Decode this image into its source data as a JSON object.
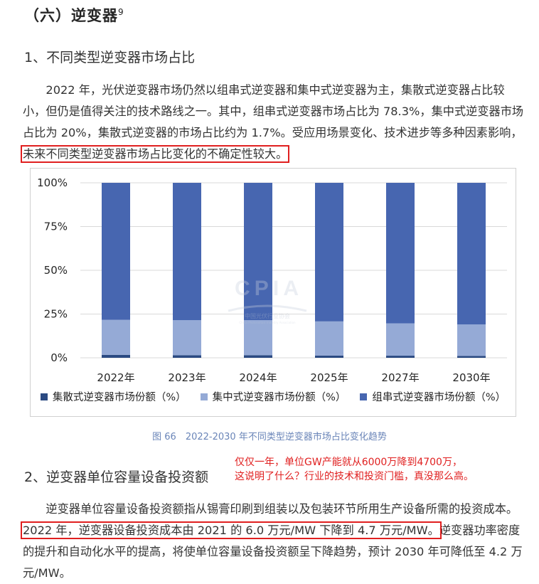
{
  "heading": {
    "text": "（六）逆变器",
    "footnote": "9"
  },
  "section1": {
    "title": "1、不同类型逆变器市场占比",
    "para_before": "2022 年，光伏逆变器市场仍然以组串式逆变器和集中式逆变器为主，集散式逆变器占比较小，但仍是值得关注的技术路线之一。其中，组串式逆变器市场占比为 78.3%，集中式逆变器市场占比为 20%，集散式逆变器的市场占比约为 1.7%。受应用场景变化、技术进步等多种因素影响，",
    "para_highlight": "未来不同类型逆变器市场占比变化的不确定性较大。"
  },
  "watermark": {
    "logo": "CPIA",
    "text": "中国光伏行业协会",
    "subtext": "China Photovoltaic Industry Association"
  },
  "chart_data": {
    "type": "bar",
    "stacked": true,
    "percent": true,
    "categories": [
      "2022年",
      "2023年",
      "2024年",
      "2025年",
      "2027年",
      "2030年"
    ],
    "series": [
      {
        "name": "集散式逆变器市场份额（%）",
        "color": "#2b4a82",
        "values": [
          1.7,
          1.5,
          1.5,
          1.3,
          1.2,
          1.1
        ]
      },
      {
        "name": "集中式逆变器市场份额（%）",
        "color": "#95aad6",
        "values": [
          20.0,
          20.0,
          20.0,
          19.5,
          18.5,
          18.0
        ]
      },
      {
        "name": "组串式逆变器市场份额（%）",
        "color": "#4766b0",
        "values": [
          78.3,
          78.5,
          78.5,
          79.2,
          80.3,
          80.9
        ]
      }
    ],
    "yticks": [
      "0%",
      "25%",
      "50%",
      "75%",
      "100%"
    ],
    "ylim": [
      0,
      100
    ],
    "legend_position": "bottom"
  },
  "caption": "图 66　2022-2030 年不同类型逆变器市场占比变化趋势",
  "annotation": {
    "line1": "仅仅一年，单位GW产能就从6000万降到4700万，",
    "line2": "这说明了什么？行业的技术和投资门槛，真没那么高。"
  },
  "section2": {
    "title": "2、逆变器单位容量设备投资额",
    "para_before": "逆变器单位容量设备投资额指从锡膏印刷到组装以及包装环节所用生产设备所需的投资成本。",
    "para_highlight": "2022 年，逆变器设备投资成本由 2021 的 6.0 万元/MW 下降到 4.7 万元/MW。",
    "para_after": "逆变器功率密度的提升和自动化水平的提高，将使单位容量设备投资额呈下降趋势，预计 2030 年可降低至 4.2 万元/MW。"
  }
}
